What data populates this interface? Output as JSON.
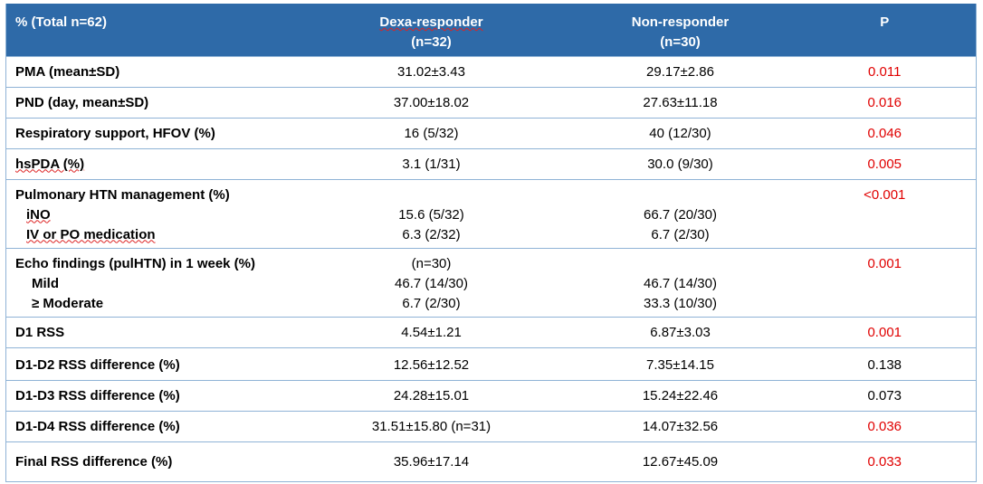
{
  "header": {
    "col1": "% (Total n=62)",
    "col2_line1": "Dexa-responder",
    "col2_line2": "(n=32)",
    "col3_line1": "Non-responder",
    "col3_line2": "(n=30)",
    "col4": "P"
  },
  "rows": [
    {
      "label": "PMA (mean±SD)",
      "dexa": "31.02±3.43",
      "non": "29.17±2.86",
      "p": "0.011"
    },
    {
      "label": "PND (day, mean±SD)",
      "dexa": "37.00±18.02",
      "non": "27.63±11.18",
      "p": "0.016"
    },
    {
      "label": "Respiratory support, HFOV (%)",
      "dexa": "16 (5/32)",
      "non": "40 (12/30)",
      "p": "0.046"
    },
    {
      "label": "hsPDA (%)",
      "dexa": "3.1 (1/31)",
      "non": "30.0 (9/30)",
      "p": "0.005"
    }
  ],
  "pulm": {
    "label": "Pulmonary HTN management (%)",
    "sub1": "iNO",
    "sub2": "IV or PO medication",
    "dexa1": "15.6 (5/32)",
    "dexa2": "6.3 (2/32)",
    "non1": "66.7 (20/30)",
    "non2": "6.7 (2/30)",
    "p": "<0.001"
  },
  "echo": {
    "label": "Echo findings (pulHTN) in 1 week (%)",
    "sub1": "Mild",
    "sub2": "≥ Moderate",
    "dexa0": "(n=30)",
    "dexa1": "46.7 (14/30)",
    "dexa2": "6.7 (2/30)",
    "non1": "46.7 (14/30)",
    "non2": "33.3 (10/30)",
    "p": "0.001"
  },
  "rows2": [
    {
      "label": "D1 RSS",
      "dexa": "4.54±1.21",
      "non": "6.87±3.03",
      "p": "0.001",
      "sig": true
    },
    {
      "label": "D1-D2 RSS difference (%)",
      "dexa": "12.56±12.52",
      "non": "7.35±14.15",
      "p": "0.138",
      "sig": false
    },
    {
      "label": "D1-D3 RSS difference (%)",
      "dexa": "24.28±15.01",
      "non": "15.24±22.46",
      "p": "0.073",
      "sig": false
    },
    {
      "label": "D1-D4 RSS difference (%)",
      "dexa": "31.51±15.80 (n=31)",
      "non": "14.07±32.56",
      "p": "0.036",
      "sig": true
    },
    {
      "label": "Final RSS difference (%)",
      "dexa": "35.96±17.14",
      "non": "12.67±45.09",
      "p": "0.033",
      "sig": true
    }
  ],
  "colors": {
    "header_bg": "#2e6aa8",
    "significant": "#e00000",
    "border": "#8fb3d6"
  }
}
